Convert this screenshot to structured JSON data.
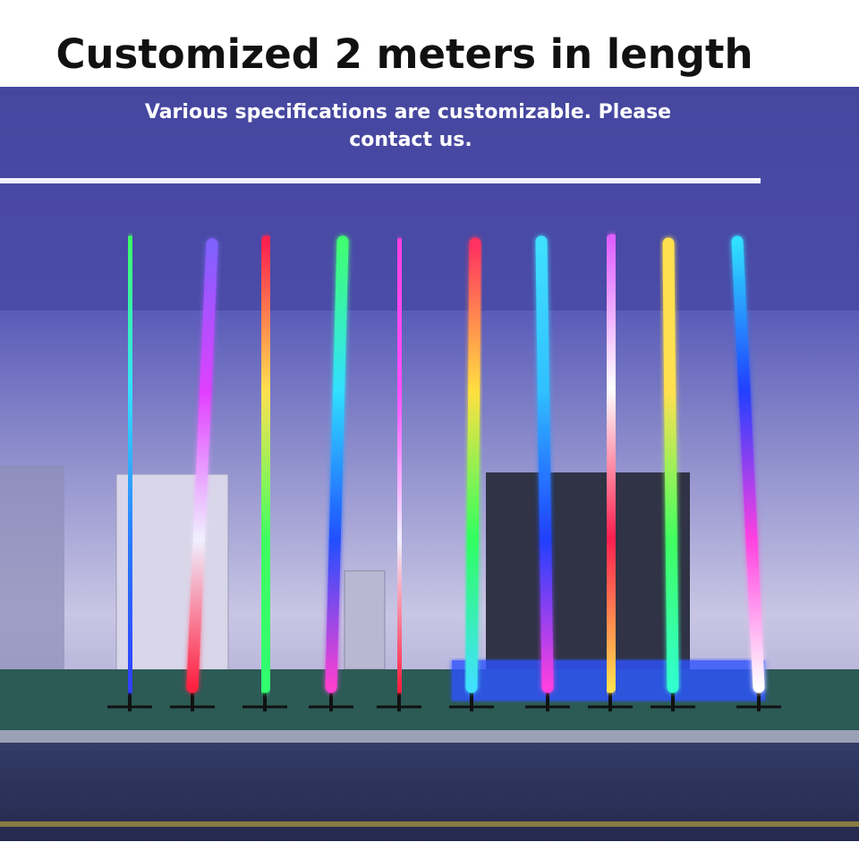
{
  "header": {
    "title": "Customized 2 meters in length"
  },
  "photo": {
    "caption_lines": [
      "Various specifications are customizable. Please",
      "contact us."
    ]
  }
}
